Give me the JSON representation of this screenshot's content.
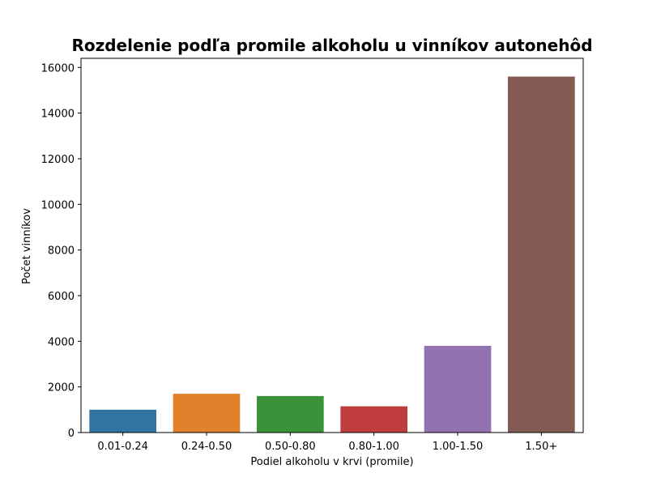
{
  "chart_data": {
    "type": "bar",
    "title": "Rozdelenie podľa promile alkoholu u vinníkov autonehôd",
    "xlabel": "Podiel alkoholu v krvi (promile)",
    "ylabel": "Počet vinníkov",
    "categories": [
      "0.01-0.24",
      "0.24-0.50",
      "0.50-0.80",
      "0.80-1.00",
      "1.00-1.50",
      "1.50+"
    ],
    "values": [
      1000,
      1700,
      1600,
      1150,
      3800,
      15600
    ],
    "colors": [
      "#3274a1",
      "#e1812c",
      "#3a923a",
      "#c03d3e",
      "#9372b2",
      "#845b53"
    ],
    "ylim": [
      0,
      16400
    ],
    "yticks": [
      0,
      2000,
      4000,
      6000,
      8000,
      10000,
      12000,
      14000,
      16000
    ],
    "grid": false,
    "legend": "none"
  }
}
